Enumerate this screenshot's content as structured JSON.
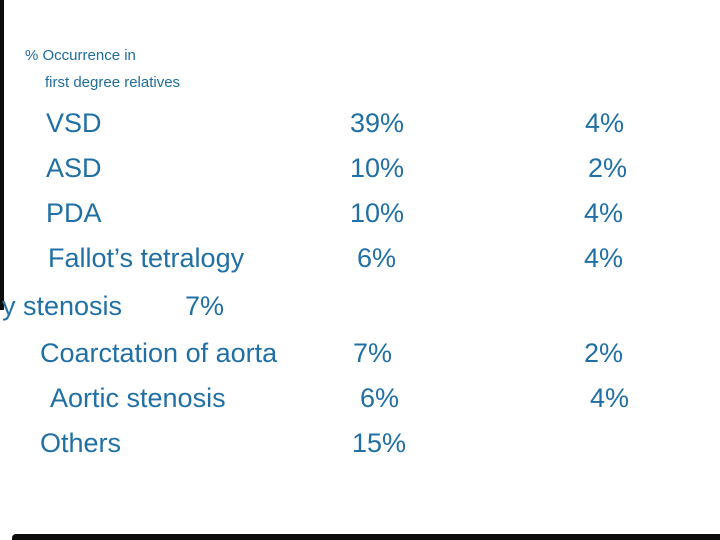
{
  "slide": {
    "header": {
      "line1": "% Occurrence in",
      "line2": "first degree relatives"
    },
    "table": {
      "rows": [
        {
          "label": "VSD",
          "value1": "39%",
          "value2": "4%"
        },
        {
          "label": "ASD",
          "value1": "10%",
          "value2": "2%"
        },
        {
          "label": "PDA",
          "value1": "10%",
          "value2": "4%"
        },
        {
          "label": "Fallot’s tetralogy",
          "value1": "6%",
          "value2": "4%"
        },
        {
          "label": "y stenosis",
          "value1": "7%",
          "value2": ""
        },
        {
          "label": "Coarctation of aorta",
          "value1": "7%",
          "value2": "2%"
        },
        {
          "label": "Aortic stenosis",
          "value1": "6%",
          "value2": "4%"
        },
        {
          "label": "Others",
          "value1": "15%",
          "value2": ""
        }
      ]
    },
    "colors": {
      "body_text": "#2170A5",
      "header_text": "#1E6C9E",
      "frame_lines": "#0B0B0B",
      "background": "#FFFFFF"
    }
  }
}
